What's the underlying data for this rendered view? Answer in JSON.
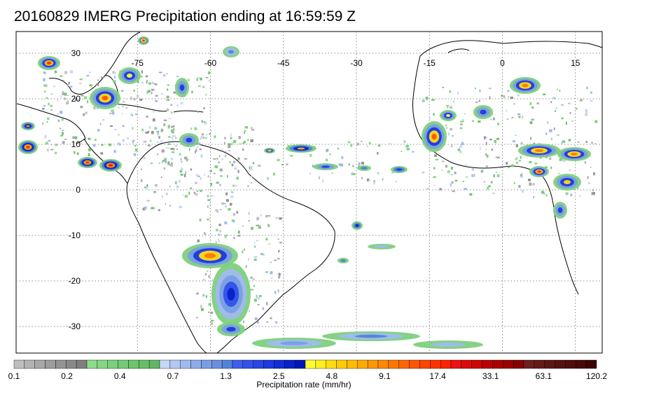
{
  "title": "20160829 IMERG Precipitation ending at 16:59:59 Z",
  "map": {
    "lon_labels": [
      "-75",
      "-60",
      "-45",
      "-30",
      "-15",
      "0",
      "15"
    ],
    "lat_labels": [
      "30",
      "20",
      "10",
      "0",
      "-10",
      "-20",
      "-30"
    ],
    "grid": "dotted"
  },
  "colorbar": {
    "label": "Precipitation rate (mm/hr)",
    "tick_labels": [
      "0.1",
      "0.2",
      "0.4",
      "0.7",
      "1.3",
      "2.5",
      "4.8",
      "9.1",
      "17.4",
      "33.1",
      "63.1",
      "120.2"
    ],
    "colors": [
      "#bfbfbf",
      "#b3b3b3",
      "#a8a8a8",
      "#9d9d9d",
      "#939393",
      "#898989",
      "#808080",
      "#8edb8e",
      "#85d685",
      "#7dd07d",
      "#75ca75",
      "#6dc46d",
      "#66be66",
      "#5fb85f",
      "#c6d6f7",
      "#b3c8f2",
      "#a0baee",
      "#8dace9",
      "#7a9ee4",
      "#6790df",
      "#5482da",
      "#3f5ef0",
      "#3352ea",
      "#2846e4",
      "#1c3ade",
      "#112ed8",
      "#0822c8",
      "#0016b8",
      "#ffff33",
      "#ffee22",
      "#ffdd11",
      "#ffcc00",
      "#ffbb00",
      "#ffaa00",
      "#ff9900",
      "#ff8800",
      "#ff7700",
      "#ff6600",
      "#ff5500",
      "#ff4400",
      "#ff3300",
      "#ff2200",
      "#ee1111",
      "#dd0a0a",
      "#cc0505",
      "#bb0000",
      "#aa0000",
      "#990000",
      "#880000",
      "#6e1f1f",
      "#661a1a",
      "#5e1515",
      "#561010",
      "#4e0c0c",
      "#460808",
      "#3e0404"
    ]
  }
}
